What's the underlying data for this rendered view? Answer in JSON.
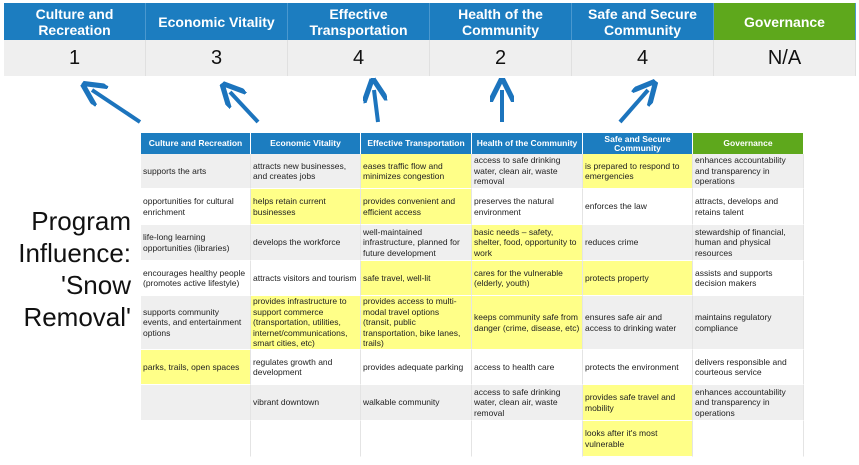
{
  "summary": {
    "columns": [
      "Culture and Recreation",
      "Economic Vitality",
      "Effective Transportation",
      "Health of the Community",
      "Safe and Secure Community",
      "Governance"
    ],
    "values": [
      "1",
      "3",
      "4",
      "2",
      "4",
      "N/A"
    ]
  },
  "program_label": "Program Influence: 'Snow Removal'",
  "colors": {
    "header_blue": "#1c7dc0",
    "governance_green": "#5ea81c",
    "highlight": "#ffff88",
    "arrow": "#1c74bd"
  },
  "table": {
    "headers": [
      "Culture and Recreation",
      "Economic Vitality",
      "Effective Transportation",
      "Health of the Community",
      "Safe and Secure Community",
      "Governance"
    ],
    "rows": [
      {
        "cells": [
          "supports the arts",
          "attracts new businesses, and creates jobs",
          "eases traffic flow and minimizes congestion",
          "access to safe drinking water, clean air, waste removal",
          "is prepared to respond to emergencies",
          "enhances accountability and transparency in operations"
        ],
        "highlight": [
          0,
          0,
          1,
          0,
          1,
          0
        ]
      },
      {
        "cells": [
          "opportunities for cultural enrichment",
          "helps retain current businesses",
          "provides convenient and efficient access",
          "preserves the natural environment",
          "enforces the law",
          "attracts, develops and retains talent"
        ],
        "highlight": [
          0,
          1,
          1,
          0,
          0,
          0
        ]
      },
      {
        "cells": [
          "life-long learning opportunities (libraries)",
          "develops the workforce",
          "well-maintained infrastructure, planned for future development",
          "basic needs – safety, shelter, food, opportunity to work",
          "reduces crime",
          "stewardship of financial, human and physical resources"
        ],
        "highlight": [
          0,
          0,
          0,
          1,
          0,
          0
        ]
      },
      {
        "cells": [
          "encourages healthy people (promotes active lifestyle)",
          "attracts visitors and tourism",
          "safe travel, well-lit",
          "cares for the vulnerable (elderly, youth)",
          "protects property",
          "assists and supports decision makers"
        ],
        "highlight": [
          0,
          0,
          1,
          1,
          1,
          0
        ]
      },
      {
        "cells": [
          "supports community events, and entertainment options",
          "provides infrastructure to support commerce (transportation, utilities, internet/communications, smart cities, etc)",
          "provides access to multi-modal travel options (transit, public transportation, bike lanes, trails)",
          "keeps community safe from danger (crime, disease, etc)",
          "ensures safe air and access to drinking water",
          "maintains regulatory compliance"
        ],
        "highlight": [
          0,
          1,
          1,
          1,
          0,
          0
        ]
      },
      {
        "cells": [
          "parks, trails, open spaces",
          "regulates growth and development",
          "provides adequate parking",
          "access to health care",
          "protects the environment",
          "delivers responsible and courteous service"
        ],
        "highlight": [
          1,
          0,
          0,
          0,
          0,
          0
        ]
      },
      {
        "cells": [
          "",
          "vibrant downtown",
          "walkable community",
          "access to safe drinking water, clean air, waste removal",
          "provides safe travel and mobility",
          "enhances accountability and transparency in operations"
        ],
        "highlight": [
          0,
          0,
          0,
          0,
          1,
          0
        ]
      },
      {
        "cells": [
          "",
          "",
          "",
          "",
          "looks after it's most vulnerable",
          ""
        ],
        "highlight": [
          0,
          0,
          0,
          0,
          1,
          0
        ]
      }
    ]
  }
}
